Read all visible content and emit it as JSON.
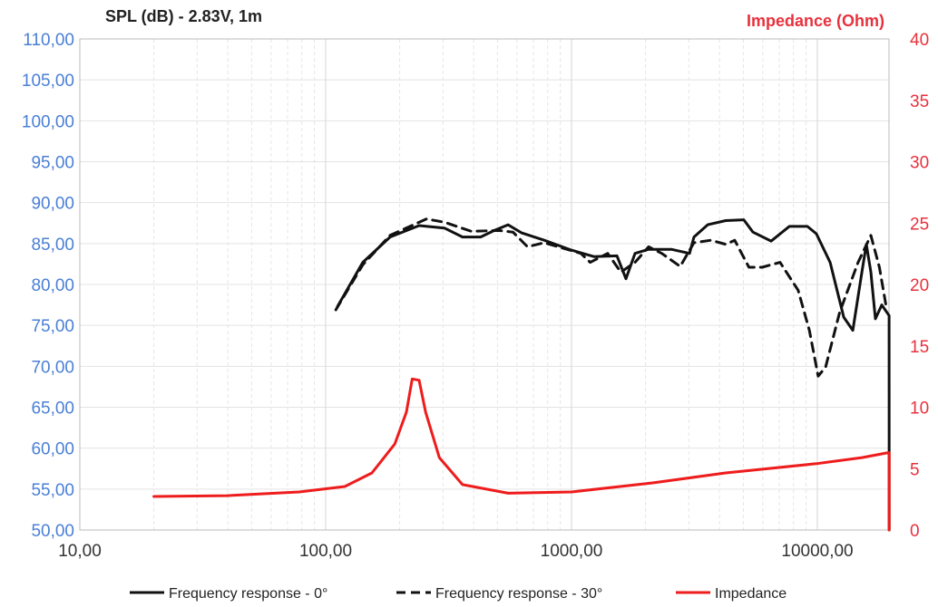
{
  "chart_data": {
    "type": "line",
    "title_left": "SPL (dB) - 2.83V, 1m",
    "title_right": "Impedance (Ohm)",
    "xscale": "log",
    "xlim": [
      10,
      20000
    ],
    "ylim_left": [
      50,
      110
    ],
    "ylim_right": [
      0,
      40
    ],
    "grid": true,
    "legend_placement": "bottom",
    "x_ticks": [
      "10,00",
      "100,00",
      "1000,00",
      "10000,00"
    ],
    "y_ticks_left": [
      "50,00",
      "55,00",
      "60,00",
      "65,00",
      "70,00",
      "75,00",
      "80,00",
      "85,00",
      "90,00",
      "95,00",
      "100,00",
      "105,00",
      "110,00"
    ],
    "y_ticks_right": [
      "0",
      "5",
      "10",
      "15",
      "20",
      "25",
      "30",
      "35",
      "40"
    ],
    "colors": {
      "left_axis": "#4a7fd6",
      "right_axis": "#e8313d",
      "spl": "#111111",
      "impedance": "#ee1c1c"
    },
    "series": [
      {
        "name": "Frequency response - 0°",
        "axis": "left",
        "style": "solid",
        "color": "#111111",
        "points": [
          [
            111.7,
            77.3
          ],
          [
            141.6,
            82.7
          ],
          [
            182.8,
            85.8
          ],
          [
            239.9,
            87.2
          ],
          [
            304,
            86.9
          ],
          [
            360,
            85.8
          ],
          [
            427,
            85.8
          ],
          [
            485,
            86.6
          ],
          [
            552,
            87.3
          ],
          [
            627,
            86.3
          ],
          [
            775,
            85.4
          ],
          [
            1000,
            84.2
          ],
          [
            1237,
            83.4
          ],
          [
            1530,
            83.5
          ],
          [
            1665,
            80.7
          ],
          [
            1812,
            83.8
          ],
          [
            2059,
            84.3
          ],
          [
            2547,
            84.3
          ],
          [
            3020,
            83.8
          ],
          [
            3150,
            85.8
          ],
          [
            3580,
            87.3
          ],
          [
            4240,
            87.8
          ],
          [
            5020,
            87.9
          ],
          [
            5470,
            86.4
          ],
          [
            6490,
            85.3
          ],
          [
            7690,
            87.1
          ],
          [
            9110,
            87.1
          ],
          [
            9910,
            86.2
          ],
          [
            11270,
            82.7
          ],
          [
            12800,
            76.0
          ],
          [
            13940,
            74.4
          ],
          [
            15180,
            81.5
          ],
          [
            15820,
            84.9
          ],
          [
            16510,
            81.5
          ],
          [
            17220,
            75.8
          ],
          [
            18280,
            77.5
          ],
          [
            19580,
            76.2
          ],
          [
            19600,
            50.0
          ]
        ]
      },
      {
        "name": "Frequency response - 30°",
        "axis": "left",
        "style": "dashed",
        "color": "#111111",
        "points": [
          [
            110,
            76.9
          ],
          [
            141.6,
            82.4
          ],
          [
            182.8,
            86.0
          ],
          [
            257,
            88.0
          ],
          [
            304,
            87.6
          ],
          [
            391,
            86.5
          ],
          [
            506,
            86.6
          ],
          [
            578,
            86.4
          ],
          [
            662,
            84.6
          ],
          [
            775,
            85.1
          ],
          [
            1091,
            83.8
          ],
          [
            1191,
            82.7
          ],
          [
            1404,
            83.8
          ],
          [
            1588,
            81.5
          ],
          [
            1812,
            82.7
          ],
          [
            2059,
            84.6
          ],
          [
            2328,
            83.8
          ],
          [
            2767,
            82.2
          ],
          [
            3150,
            85.1
          ],
          [
            3690,
            85.4
          ],
          [
            4240,
            84.9
          ],
          [
            4610,
            85.4
          ],
          [
            5270,
            82.1
          ],
          [
            5960,
            82.1
          ],
          [
            7050,
            82.7
          ],
          [
            8350,
            79.3
          ],
          [
            9280,
            74.4
          ],
          [
            10080,
            68.8
          ],
          [
            10800,
            69.9
          ],
          [
            12320,
            76.6
          ],
          [
            14640,
            82.7
          ],
          [
            16510,
            86.0
          ],
          [
            17880,
            82.1
          ],
          [
            19100,
            77.1
          ]
        ]
      },
      {
        "name": "Impedance",
        "axis": "right",
        "style": "solid",
        "color": "#ee1c1c",
        "points": [
          [
            20,
            2.73
          ],
          [
            39.6,
            2.8
          ],
          [
            78.1,
            3.1
          ],
          [
            119.6,
            3.54
          ],
          [
            154.3,
            4.65
          ],
          [
            191,
            7.0
          ],
          [
            213,
            9.6
          ],
          [
            225,
            12.3
          ],
          [
            240,
            12.2
          ],
          [
            255,
            9.6
          ],
          [
            290,
            5.9
          ],
          [
            360,
            3.7
          ],
          [
            552,
            3.0
          ],
          [
            1000,
            3.1
          ],
          [
            2140,
            3.84
          ],
          [
            4240,
            4.65
          ],
          [
            9910,
            5.4
          ],
          [
            15180,
            5.9
          ],
          [
            19100,
            6.27
          ],
          [
            19600,
            6.3
          ],
          [
            19600,
            0
          ]
        ]
      }
    ]
  }
}
